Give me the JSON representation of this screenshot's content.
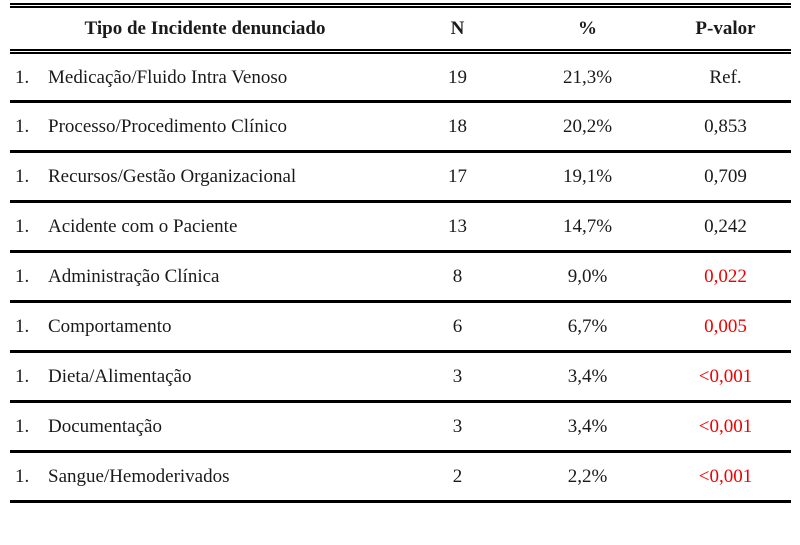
{
  "table": {
    "headers": {
      "type": "Tipo de Incidente denunciado",
      "n": "N",
      "pct": "%",
      "pvalue": "P-valor"
    },
    "rows": [
      {
        "num": "1.",
        "type": "Medicação/Fluido Intra Venoso",
        "n": "19",
        "pct": "21,3%",
        "pvalue": "Ref.",
        "significant": false
      },
      {
        "num": "1.",
        "type": "Processo/Procedimento Clínico",
        "n": "18",
        "pct": "20,2%",
        "pvalue": "0,853",
        "significant": false
      },
      {
        "num": "1.",
        "type": "Recursos/Gestão Organizacional",
        "n": "17",
        "pct": "19,1%",
        "pvalue": "0,709",
        "significant": false
      },
      {
        "num": "1.",
        "type": "Acidente com o Paciente",
        "n": "13",
        "pct": "14,7%",
        "pvalue": "0,242",
        "significant": false
      },
      {
        "num": "1.",
        "type": "Administração Clínica",
        "n": "8",
        "pct": "9,0%",
        "pvalue": "0,022",
        "significant": true
      },
      {
        "num": "1.",
        "type": "Comportamento",
        "n": "6",
        "pct": "6,7%",
        "pvalue": "0,005",
        "significant": true
      },
      {
        "num": "1.",
        "type": "Dieta/Alimentação",
        "n": "3",
        "pct": "3,4%",
        "pvalue": "<0,001",
        "significant": true
      },
      {
        "num": "1.",
        "type": "Documentação",
        "n": "3",
        "pct": "3,4%",
        "pvalue": "<0,001",
        "significant": true
      },
      {
        "num": "1.",
        "type": "Sangue/Hemoderivados",
        "n": "2",
        "pct": "2,2%",
        "pvalue": "<0,001",
        "significant": true
      }
    ]
  },
  "colors": {
    "text": "#1a1a1a",
    "significant_pvalue": "#f00000",
    "border": "#000000",
    "background": "#ffffff"
  }
}
